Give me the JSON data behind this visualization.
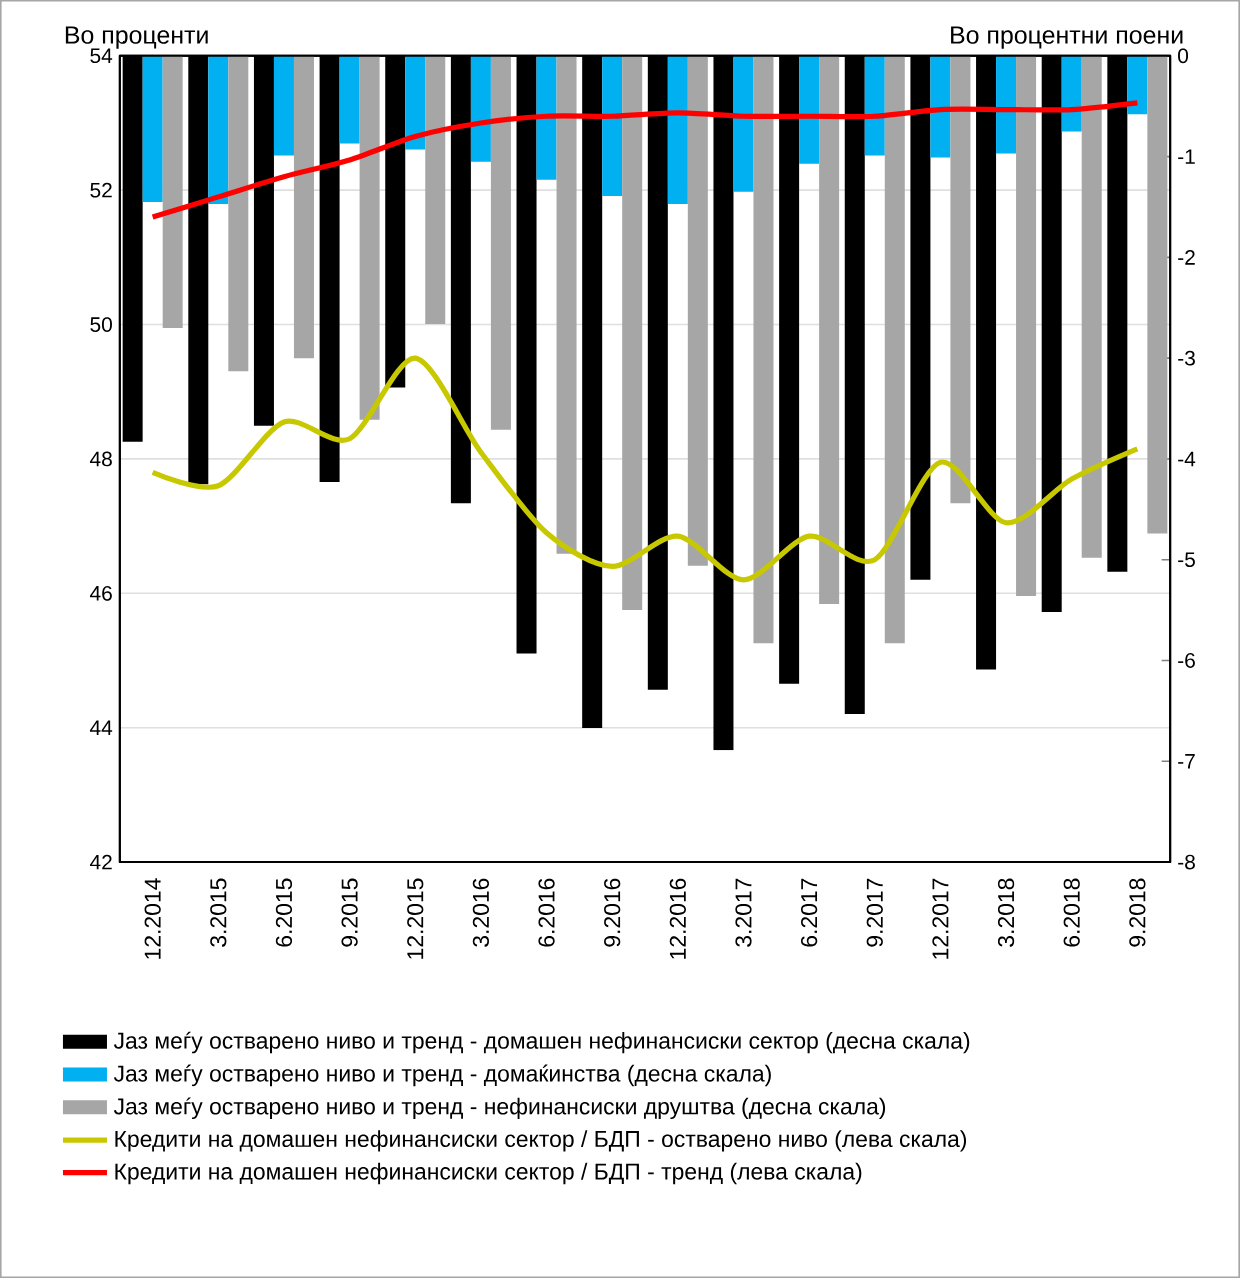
{
  "chart_data": {
    "type": "bar",
    "ylabel": "Во проценти",
    "y2label": "Во процентни поени",
    "categories": [
      "12.2014",
      "3.2015",
      "6.2015",
      "9.2015",
      "12.2015",
      "3.2016",
      "6.2016",
      "9.2016",
      "12.2016",
      "3.2017",
      "6.2017",
      "9.2017",
      "12.2017",
      "3.2018",
      "6.2018",
      "9.2018"
    ],
    "series": [
      {
        "name": "Јаз меѓу остварено ниво и тренд - домашен нефинансиски сектор (десна скала)",
        "axis": "y2",
        "color": "#000000",
        "values": [
          -3.83,
          -4.25,
          -3.67,
          -4.23,
          -3.29,
          -4.44,
          -5.93,
          -6.67,
          -6.29,
          -6.89,
          -6.23,
          -6.53,
          -5.2,
          -6.09,
          -5.52,
          -5.12
        ]
      },
      {
        "name": "Јаз меѓу остварено ниво и тренд - домаќинства (десна скала)",
        "axis": "y2",
        "color": "#00b0f0",
        "values": [
          -1.45,
          -1.47,
          -0.99,
          -0.87,
          -0.93,
          -1.05,
          -1.23,
          -1.39,
          -1.47,
          -1.35,
          -1.07,
          -0.99,
          -1.01,
          -0.97,
          -0.75,
          -0.58
        ]
      },
      {
        "name": "Јаз меѓу остварено ниво и тренд - нефинансиски друштва (десна скала)",
        "axis": "y2",
        "color": "#a6a6a6",
        "values": [
          -2.7,
          -3.13,
          -3.0,
          -3.61,
          -2.66,
          -3.71,
          -4.94,
          -5.5,
          -5.06,
          -5.83,
          -5.44,
          -5.83,
          -4.44,
          -5.36,
          -4.98,
          -4.74
        ]
      },
      {
        "name": "Кредити на домашен нефинансиски сектор / БДП - остварено ниво (лева скала)",
        "type": "line",
        "axis": "y",
        "color": "#c8c800",
        "values": [
          47.8,
          47.6,
          48.55,
          48.3,
          49.5,
          48.1,
          46.9,
          46.4,
          46.85,
          46.2,
          46.85,
          46.5,
          47.95,
          47.05,
          47.7,
          48.15
        ]
      },
      {
        "name": "Кредити на домашен нефинансиски сектор / БДП - тренд (лева скала)",
        "type": "line",
        "axis": "y",
        "color": "#ff0000",
        "values": [
          51.6,
          51.9,
          52.2,
          52.45,
          52.8,
          53.0,
          53.1,
          53.1,
          53.15,
          53.1,
          53.1,
          53.1,
          53.2,
          53.2,
          53.2,
          53.3
        ]
      }
    ],
    "ylim": [
      42,
      54
    ],
    "yticks": [
      42,
      44,
      46,
      48,
      50,
      52,
      54
    ],
    "y2lim": [
      -8,
      0
    ],
    "y2ticks": [
      -8,
      -7,
      -6,
      -5,
      -4,
      -3,
      -2,
      -1,
      0
    ],
    "grid": "y",
    "legend": "bottom"
  }
}
